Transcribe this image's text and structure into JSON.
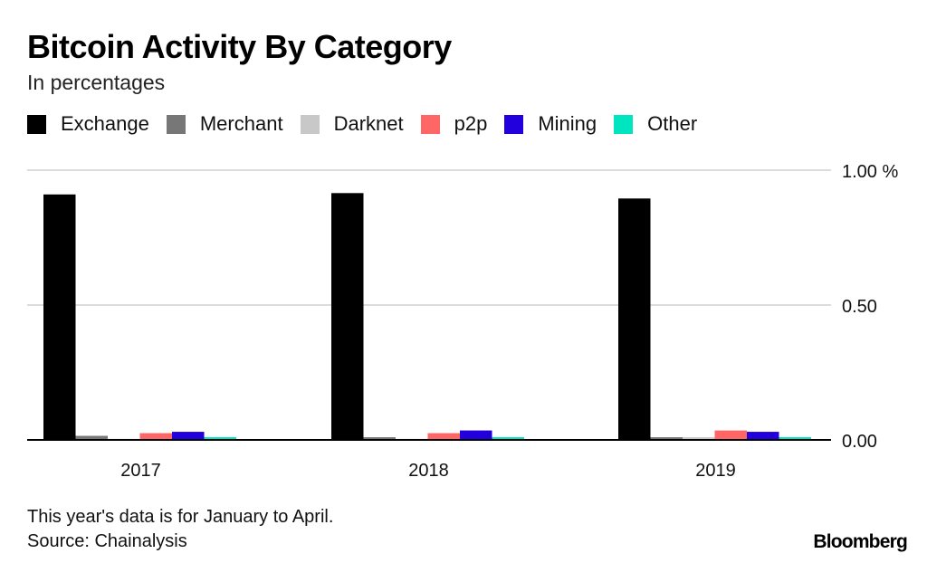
{
  "chart_data": {
    "type": "bar",
    "title": "Bitcoin Activity By Category",
    "subtitle": "In percentages",
    "categories": [
      "2017",
      "2018",
      "2019"
    ],
    "series": [
      {
        "name": "Exchange",
        "color": "#000000",
        "values": [
          0.91,
          0.915,
          0.895
        ]
      },
      {
        "name": "Merchant",
        "color": "#777777",
        "values": [
          0.015,
          0.01,
          0.01
        ]
      },
      {
        "name": "Darknet",
        "color": "#c8c8c8",
        "values": [
          0.004,
          0.004,
          0.01
        ]
      },
      {
        "name": "p2p",
        "color": "#ff6666",
        "values": [
          0.025,
          0.025,
          0.035
        ]
      },
      {
        "name": "Mining",
        "color": "#2200dd",
        "values": [
          0.03,
          0.035,
          0.03
        ]
      },
      {
        "name": "Other",
        "color": "#00e5c0",
        "values": [
          0.01,
          0.01,
          0.01
        ]
      }
    ],
    "ylim": [
      0,
      1
    ],
    "yticks": [
      {
        "value": 0,
        "label": "0.00"
      },
      {
        "value": 0.5,
        "label": "0.50"
      },
      {
        "value": 1,
        "label": "1.00 %"
      }
    ],
    "grid": true,
    "legend_position": "top-left",
    "y_axis_side": "right"
  },
  "footer": {
    "note": "This year's data is for January to April.",
    "source": "Source: Chainalysis",
    "brand": "Bloomberg"
  }
}
